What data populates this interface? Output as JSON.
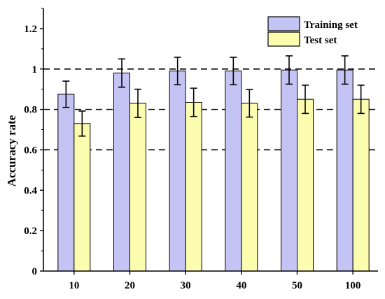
{
  "chart_data": {
    "type": "bar",
    "categories": [
      "10",
      "20",
      "30",
      "40",
      "50",
      "100"
    ],
    "series": [
      {
        "name": "Training set",
        "values": [
          0.875,
          0.98,
          0.99,
          0.99,
          0.995,
          0.995
        ],
        "errors": [
          0.065,
          0.07,
          0.068,
          0.068,
          0.07,
          0.07
        ],
        "color": "#c4c4f4"
      },
      {
        "name": "Test set",
        "values": [
          0.73,
          0.83,
          0.835,
          0.83,
          0.85,
          0.85
        ],
        "errors": [
          0.062,
          0.07,
          0.07,
          0.068,
          0.07,
          0.07
        ],
        "color": "#fdfdb0"
      }
    ],
    "title": "",
    "xlabel": "",
    "ylabel": "Accuracy rate",
    "ylim": [
      0,
      1.3
    ],
    "yticks": [
      "0",
      "0.2",
      "0.4",
      "0.6",
      "0.8",
      "1",
      "1.2"
    ],
    "reference_lines": [
      0.6,
      0.8,
      1.0
    ],
    "legend_position": "top-right",
    "grid": false
  }
}
